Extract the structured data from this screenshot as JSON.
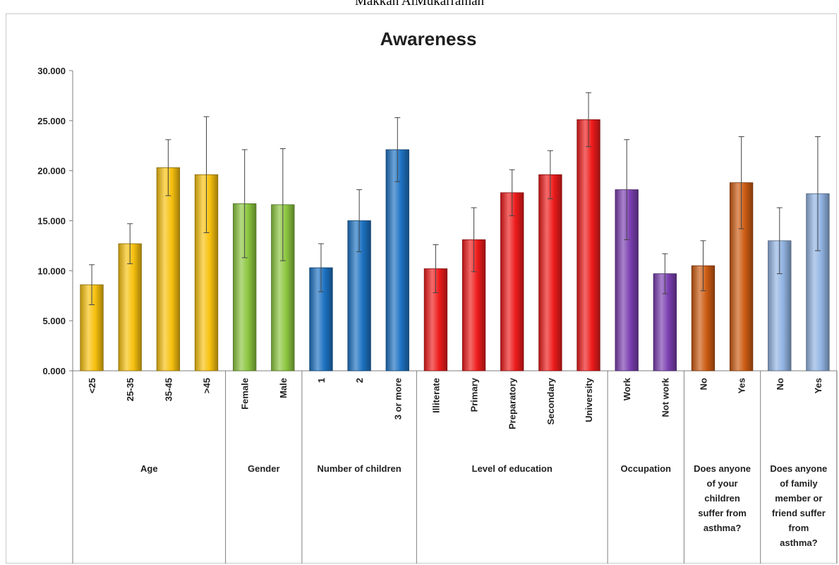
{
  "caption": "Makkah AlMukarramah",
  "chart_data": {
    "type": "bar",
    "title": "Awareness",
    "xlabel": "",
    "ylabel": "",
    "ylim": [
      0,
      30
    ],
    "yticks": [
      "0.000",
      "5.000",
      "10.000",
      "15.000",
      "20.000",
      "25.000",
      "30.000"
    ],
    "grid": false,
    "legend": "none",
    "groups": [
      {
        "name": "Age",
        "color": "#f7c10e",
        "categories": [
          "<25",
          "25-35",
          "35-45",
          ">45"
        ],
        "values": [
          8.6,
          12.7,
          20.3,
          19.6
        ],
        "errors": [
          2.0,
          2.0,
          2.8,
          5.8
        ]
      },
      {
        "name": "Gender",
        "color": "#8cc63f",
        "categories": [
          "Female",
          "Male"
        ],
        "values": [
          16.7,
          16.6
        ],
        "errors": [
          5.4,
          5.6
        ]
      },
      {
        "name": "Number of children",
        "color": "#1d72c2",
        "categories": [
          "1",
          "2",
          "3 or more"
        ],
        "values": [
          10.3,
          15.0,
          22.1
        ],
        "errors": [
          2.4,
          3.1,
          3.2
        ]
      },
      {
        "name": "Level of education",
        "color": "#ee1b1b",
        "categories": [
          "Illiterate",
          "Primary",
          "Preparatory",
          "Secondary",
          "University"
        ],
        "values": [
          10.2,
          13.1,
          17.8,
          19.6,
          25.1
        ],
        "errors": [
          2.4,
          3.2,
          2.3,
          2.4,
          2.7
        ]
      },
      {
        "name": "Occupation",
        "color": "#7a3fb0",
        "categories": [
          "Work",
          "Not work"
        ],
        "values": [
          18.1,
          9.7
        ],
        "errors": [
          5.0,
          2.0
        ]
      },
      {
        "name": "Does anyone of your children suffer from asthma?",
        "name_lines": [
          "Does anyone",
          "of your",
          "children",
          "suffer from",
          "asthma?"
        ],
        "color": "#cc5b12",
        "categories": [
          "No",
          "Yes"
        ],
        "values": [
          10.5,
          18.8
        ],
        "errors": [
          2.5,
          4.6
        ]
      },
      {
        "name": "Does anyone of family member or friend suffer from asthma?",
        "name_lines": [
          "Does anyone",
          "of family",
          "member or",
          "friend suffer",
          "from",
          "asthma?"
        ],
        "color": "#92b4e3",
        "categories": [
          "No",
          "Yes"
        ],
        "values": [
          13.0,
          17.7
        ],
        "errors": [
          3.3,
          5.7
        ]
      }
    ]
  }
}
